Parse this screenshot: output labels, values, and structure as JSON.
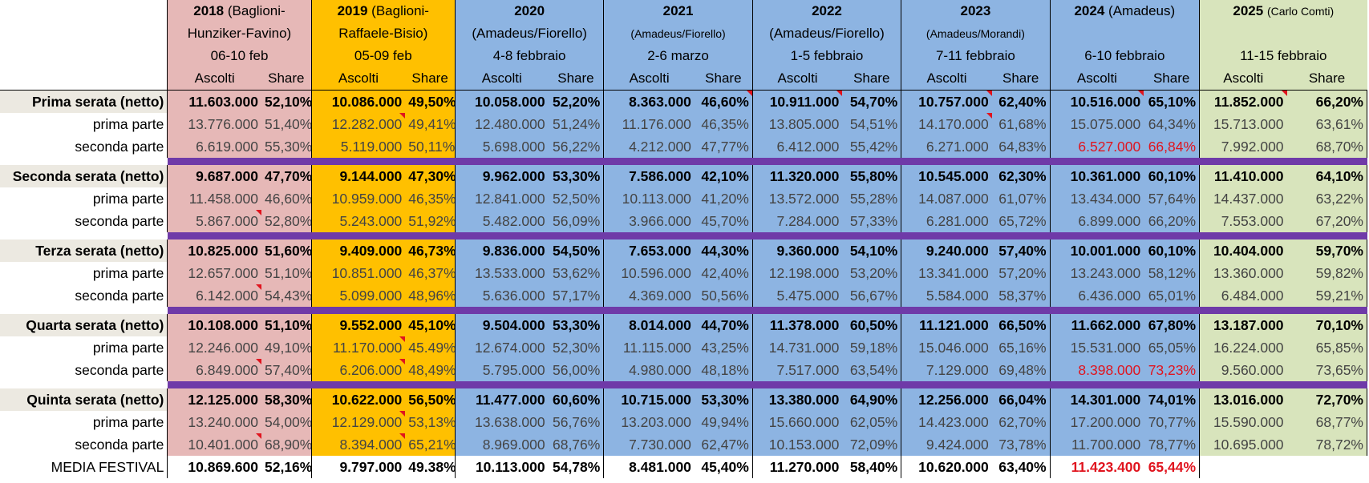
{
  "chart_data": {
    "type": "table",
    "columns": [
      {
        "key": "y2018",
        "year": "2018",
        "host": "(Baglioni-",
        "host2": "Hunziker-Favino)",
        "dates": "06-10 feb",
        "host_small": false
      },
      {
        "key": "y2019",
        "year": "2019",
        "host": "(Baglioni-",
        "host2": "Raffaele-Bisio)",
        "dates": "05-09 feb",
        "host_small": false
      },
      {
        "key": "y2020",
        "year": "2020",
        "host": "",
        "host2": "(Amadeus/Fiorello)",
        "dates": "4-8 febbraio",
        "host_small": false
      },
      {
        "key": "y2021",
        "year": "2021",
        "host": "",
        "host2": "(Amadeus/Fiorello)",
        "dates": "2-6 marzo",
        "host_small": true
      },
      {
        "key": "y2022",
        "year": "2022",
        "host": "",
        "host2": "(Amadeus/Fiorello)",
        "dates": "1-5 febbraio",
        "host_small": false
      },
      {
        "key": "y2023",
        "year": "2023",
        "host": "",
        "host2": "(Amadeus/Morandi)",
        "dates": "7-11 febbraio",
        "host_small": true
      },
      {
        "key": "y2024",
        "year": "2024",
        "host": "(Amadeus)",
        "host2": "",
        "dates": "6-10 febbraio",
        "host_small": false
      },
      {
        "key": "y2025",
        "year": "2025",
        "host": "(Carlo Comti)",
        "host2": "",
        "dates": "11-15 febbraio",
        "host_small": true
      }
    ],
    "subheaders": {
      "ascolti": "Ascolti",
      "share": "Share"
    },
    "sections": [
      {
        "rows": [
          {
            "label": "Prima serata (netto)",
            "main": true,
            "values": [
              [
                "11.603.000",
                "52,10%"
              ],
              [
                "10.086.000",
                "49,50%"
              ],
              [
                "10.058.000",
                "52,20%"
              ],
              [
                "8.363.000",
                "46,60%"
              ],
              [
                "10.911.000",
                "54,70%"
              ],
              [
                "10.757.000",
                "62,40%"
              ],
              [
                "10.516.000",
                "65,10%"
              ],
              [
                "11.852.000",
                "66,20%"
              ]
            ]
          },
          {
            "label": "prima parte",
            "main": false,
            "values": [
              [
                "13.776.000",
                "51,40%"
              ],
              [
                "12.282.000",
                "49,41%"
              ],
              [
                "12.480.000",
                "51,24%"
              ],
              [
                "11.176.000",
                "46,35%"
              ],
              [
                "13.805.000",
                "54,51%"
              ],
              [
                "14.170.000",
                "61,68%"
              ],
              [
                "15.075.000",
                "64,34%"
              ],
              [
                "15.713.000",
                "63,61%"
              ]
            ]
          },
          {
            "label": "seconda parte",
            "main": false,
            "values": [
              [
                "6.619.000",
                "55,30%"
              ],
              [
                "5.119.000",
                "50,11%"
              ],
              [
                "5.698.000",
                "56,22%"
              ],
              [
                "4.212.000",
                "47,77%"
              ],
              [
                "6.412.000",
                "55,42%"
              ],
              [
                "6.271.000",
                "64,83%"
              ],
              [
                "6.527.000",
                "66,84%"
              ],
              [
                "7.992.000",
                "68,70%"
              ]
            ]
          }
        ]
      },
      {
        "rows": [
          {
            "label": "Seconda serata (netto)",
            "main": true,
            "values": [
              [
                "9.687.000",
                "47,70%"
              ],
              [
                "9.144.000",
                "47,30%"
              ],
              [
                "9.962.000",
                "53,30%"
              ],
              [
                "7.586.000",
                "42,10%"
              ],
              [
                "11.320.000",
                "55,80%"
              ],
              [
                "10.545.000",
                "62,30%"
              ],
              [
                "10.361.000",
                "60,10%"
              ],
              [
                "11.410.000",
                "64,10%"
              ]
            ]
          },
          {
            "label": "prima parte",
            "main": false,
            "values": [
              [
                "11.458.000",
                "46,60%"
              ],
              [
                "10.959.000",
                "46,35%"
              ],
              [
                "12.841.000",
                "52,50%"
              ],
              [
                "10.113.000",
                "41,20%"
              ],
              [
                "13.572.000",
                "55,28%"
              ],
              [
                "14.087.000",
                "61,07%"
              ],
              [
                "13.434.000",
                "57,64%"
              ],
              [
                "14.437.000",
                "63,22%"
              ]
            ]
          },
          {
            "label": "seconda parte",
            "main": false,
            "values": [
              [
                "5.867.000",
                "52,80%"
              ],
              [
                "5.243.000",
                "51,92%"
              ],
              [
                "5.482.000",
                "56,09%"
              ],
              [
                "3.966.000",
                "45,70%"
              ],
              [
                "7.284.000",
                "57,33%"
              ],
              [
                "6.281.000",
                "65,72%"
              ],
              [
                "6.899.000",
                "66,20%"
              ],
              [
                "7.553.000",
                "67,20%"
              ]
            ]
          }
        ]
      },
      {
        "rows": [
          {
            "label": "Terza serata (netto)",
            "main": true,
            "values": [
              [
                "10.825.000",
                "51,60%"
              ],
              [
                "9.409.000",
                "46,73%"
              ],
              [
                "9.836.000",
                "54,50%"
              ],
              [
                "7.653.000",
                "44,30%"
              ],
              [
                "9.360.000",
                "54,10%"
              ],
              [
                "9.240.000",
                "57,40%"
              ],
              [
                "10.001.000",
                "60,10%"
              ],
              [
                "10.404.000",
                "59,70%"
              ]
            ]
          },
          {
            "label": "prima parte",
            "main": false,
            "values": [
              [
                "12.657.000",
                "51,10%"
              ],
              [
                "10.851.000",
                "46,37%"
              ],
              [
                "13.533.000",
                "53,62%"
              ],
              [
                "10.596.000",
                "42,40%"
              ],
              [
                "12.198.000",
                "53,20%"
              ],
              [
                "13.341.000",
                "57,20%"
              ],
              [
                "13.243.000",
                "58,12%"
              ],
              [
                "13.360.000",
                "59,82%"
              ]
            ]
          },
          {
            "label": "seconda parte",
            "main": false,
            "values": [
              [
                "6.142.000",
                "54,43%"
              ],
              [
                "5.099.000",
                "48,96%"
              ],
              [
                "5.636.000",
                "57,17%"
              ],
              [
                "4.369.000",
                "50,56%"
              ],
              [
                "5.475.000",
                "56,67%"
              ],
              [
                "5.584.000",
                "58,37%"
              ],
              [
                "6.436.000",
                "65,01%"
              ],
              [
                "6.484.000",
                "59,21%"
              ]
            ]
          }
        ]
      },
      {
        "rows": [
          {
            "label": "Quarta serata (netto)",
            "main": true,
            "values": [
              [
                "10.108.000",
                "51,10%"
              ],
              [
                "9.552.000",
                "45,10%"
              ],
              [
                "9.504.000",
                "53,30%"
              ],
              [
                "8.014.000",
                "44,70%"
              ],
              [
                "11.378.000",
                "60,50%"
              ],
              [
                "11.121.000",
                "66,50%"
              ],
              [
                "11.662.000",
                "67,80%"
              ],
              [
                "13.187.000",
                "70,10%"
              ]
            ]
          },
          {
            "label": "prima parte",
            "main": false,
            "values": [
              [
                "12.246.000",
                "49,10%"
              ],
              [
                "11.170.000",
                "45.49%"
              ],
              [
                "12.674.000",
                "52,30%"
              ],
              [
                "11.115.000",
                "43,25%"
              ],
              [
                "14.731.000",
                "59,18%"
              ],
              [
                "15.046.000",
                "65,16%"
              ],
              [
                "15.531.000",
                "65,05%"
              ],
              [
                "16.224.000",
                "65,85%"
              ]
            ]
          },
          {
            "label": "seconda parte",
            "main": false,
            "values": [
              [
                "6.849.000",
                "57,40%"
              ],
              [
                "6.206.000",
                "48,49%"
              ],
              [
                "5.795.000",
                "56,00%"
              ],
              [
                "4.980.000",
                "48,18%"
              ],
              [
                "7.517.000",
                "63,54%"
              ],
              [
                "7.129.000",
                "69,48%"
              ],
              [
                "8.398.000",
                "73,23%"
              ],
              [
                "9.560.000",
                "73,65%"
              ]
            ]
          }
        ]
      },
      {
        "rows": [
          {
            "label": "Quinta serata (netto)",
            "main": true,
            "values": [
              [
                "12.125.000",
                "58,30%"
              ],
              [
                "10.622.000",
                "56,50%"
              ],
              [
                "11.477.000",
                "60,60%"
              ],
              [
                "10.715.000",
                "53,30%"
              ],
              [
                "13.380.000",
                "64,90%"
              ],
              [
                "12.256.000",
                "66,04%"
              ],
              [
                "14.301.000",
                "74,01%"
              ],
              [
                "13.016.000",
                "72,70%"
              ]
            ]
          },
          {
            "label": "prima parte",
            "main": false,
            "values": [
              [
                "13.240.000",
                "54,00%"
              ],
              [
                "12.129.000",
                "53,13%"
              ],
              [
                "13.638.000",
                "56,76%"
              ],
              [
                "13.203.000",
                "49,94%"
              ],
              [
                "15.660.000",
                "62,05%"
              ],
              [
                "14.423.000",
                "62,70%"
              ],
              [
                "17.200.000",
                "70,77%"
              ],
              [
                "15.590.000",
                "68,77%"
              ]
            ]
          },
          {
            "label": "seconda parte",
            "main": false,
            "values": [
              [
                "10.401.000",
                "68,90%"
              ],
              [
                "8.394.000",
                "65,21%"
              ],
              [
                "8.969.000",
                "68,76%"
              ],
              [
                "7.730.000",
                "62,47%"
              ],
              [
                "10.153.000",
                "72,09%"
              ],
              [
                "9.424.000",
                "73,78%"
              ],
              [
                "11.700.000",
                "78,77%"
              ],
              [
                "10.695.000",
                "78,72%"
              ]
            ]
          }
        ]
      }
    ],
    "media": {
      "label": "MEDIA FESTIVAL",
      "values": [
        [
          "10.869.600",
          "52,16%"
        ],
        [
          "9.797.000",
          "49.38%"
        ],
        [
          "10.113.000",
          "54,78%"
        ],
        [
          "8.481.000",
          "45,40%"
        ],
        [
          "11.270.000",
          "58,40%"
        ],
        [
          "10.620.000",
          "63,40%"
        ],
        [
          "11.423.400",
          "65,44%"
        ],
        [
          "",
          ""
        ]
      ]
    },
    "colors": {
      "y2018": "#e6b8b7",
      "y2019": "#ffc000",
      "blue": "#8db4e2",
      "y2025": "#d8e4bc",
      "separator": "#6f3aa8",
      "label_bg": "#ece9e1",
      "highlight_red": "#e0141e"
    }
  }
}
